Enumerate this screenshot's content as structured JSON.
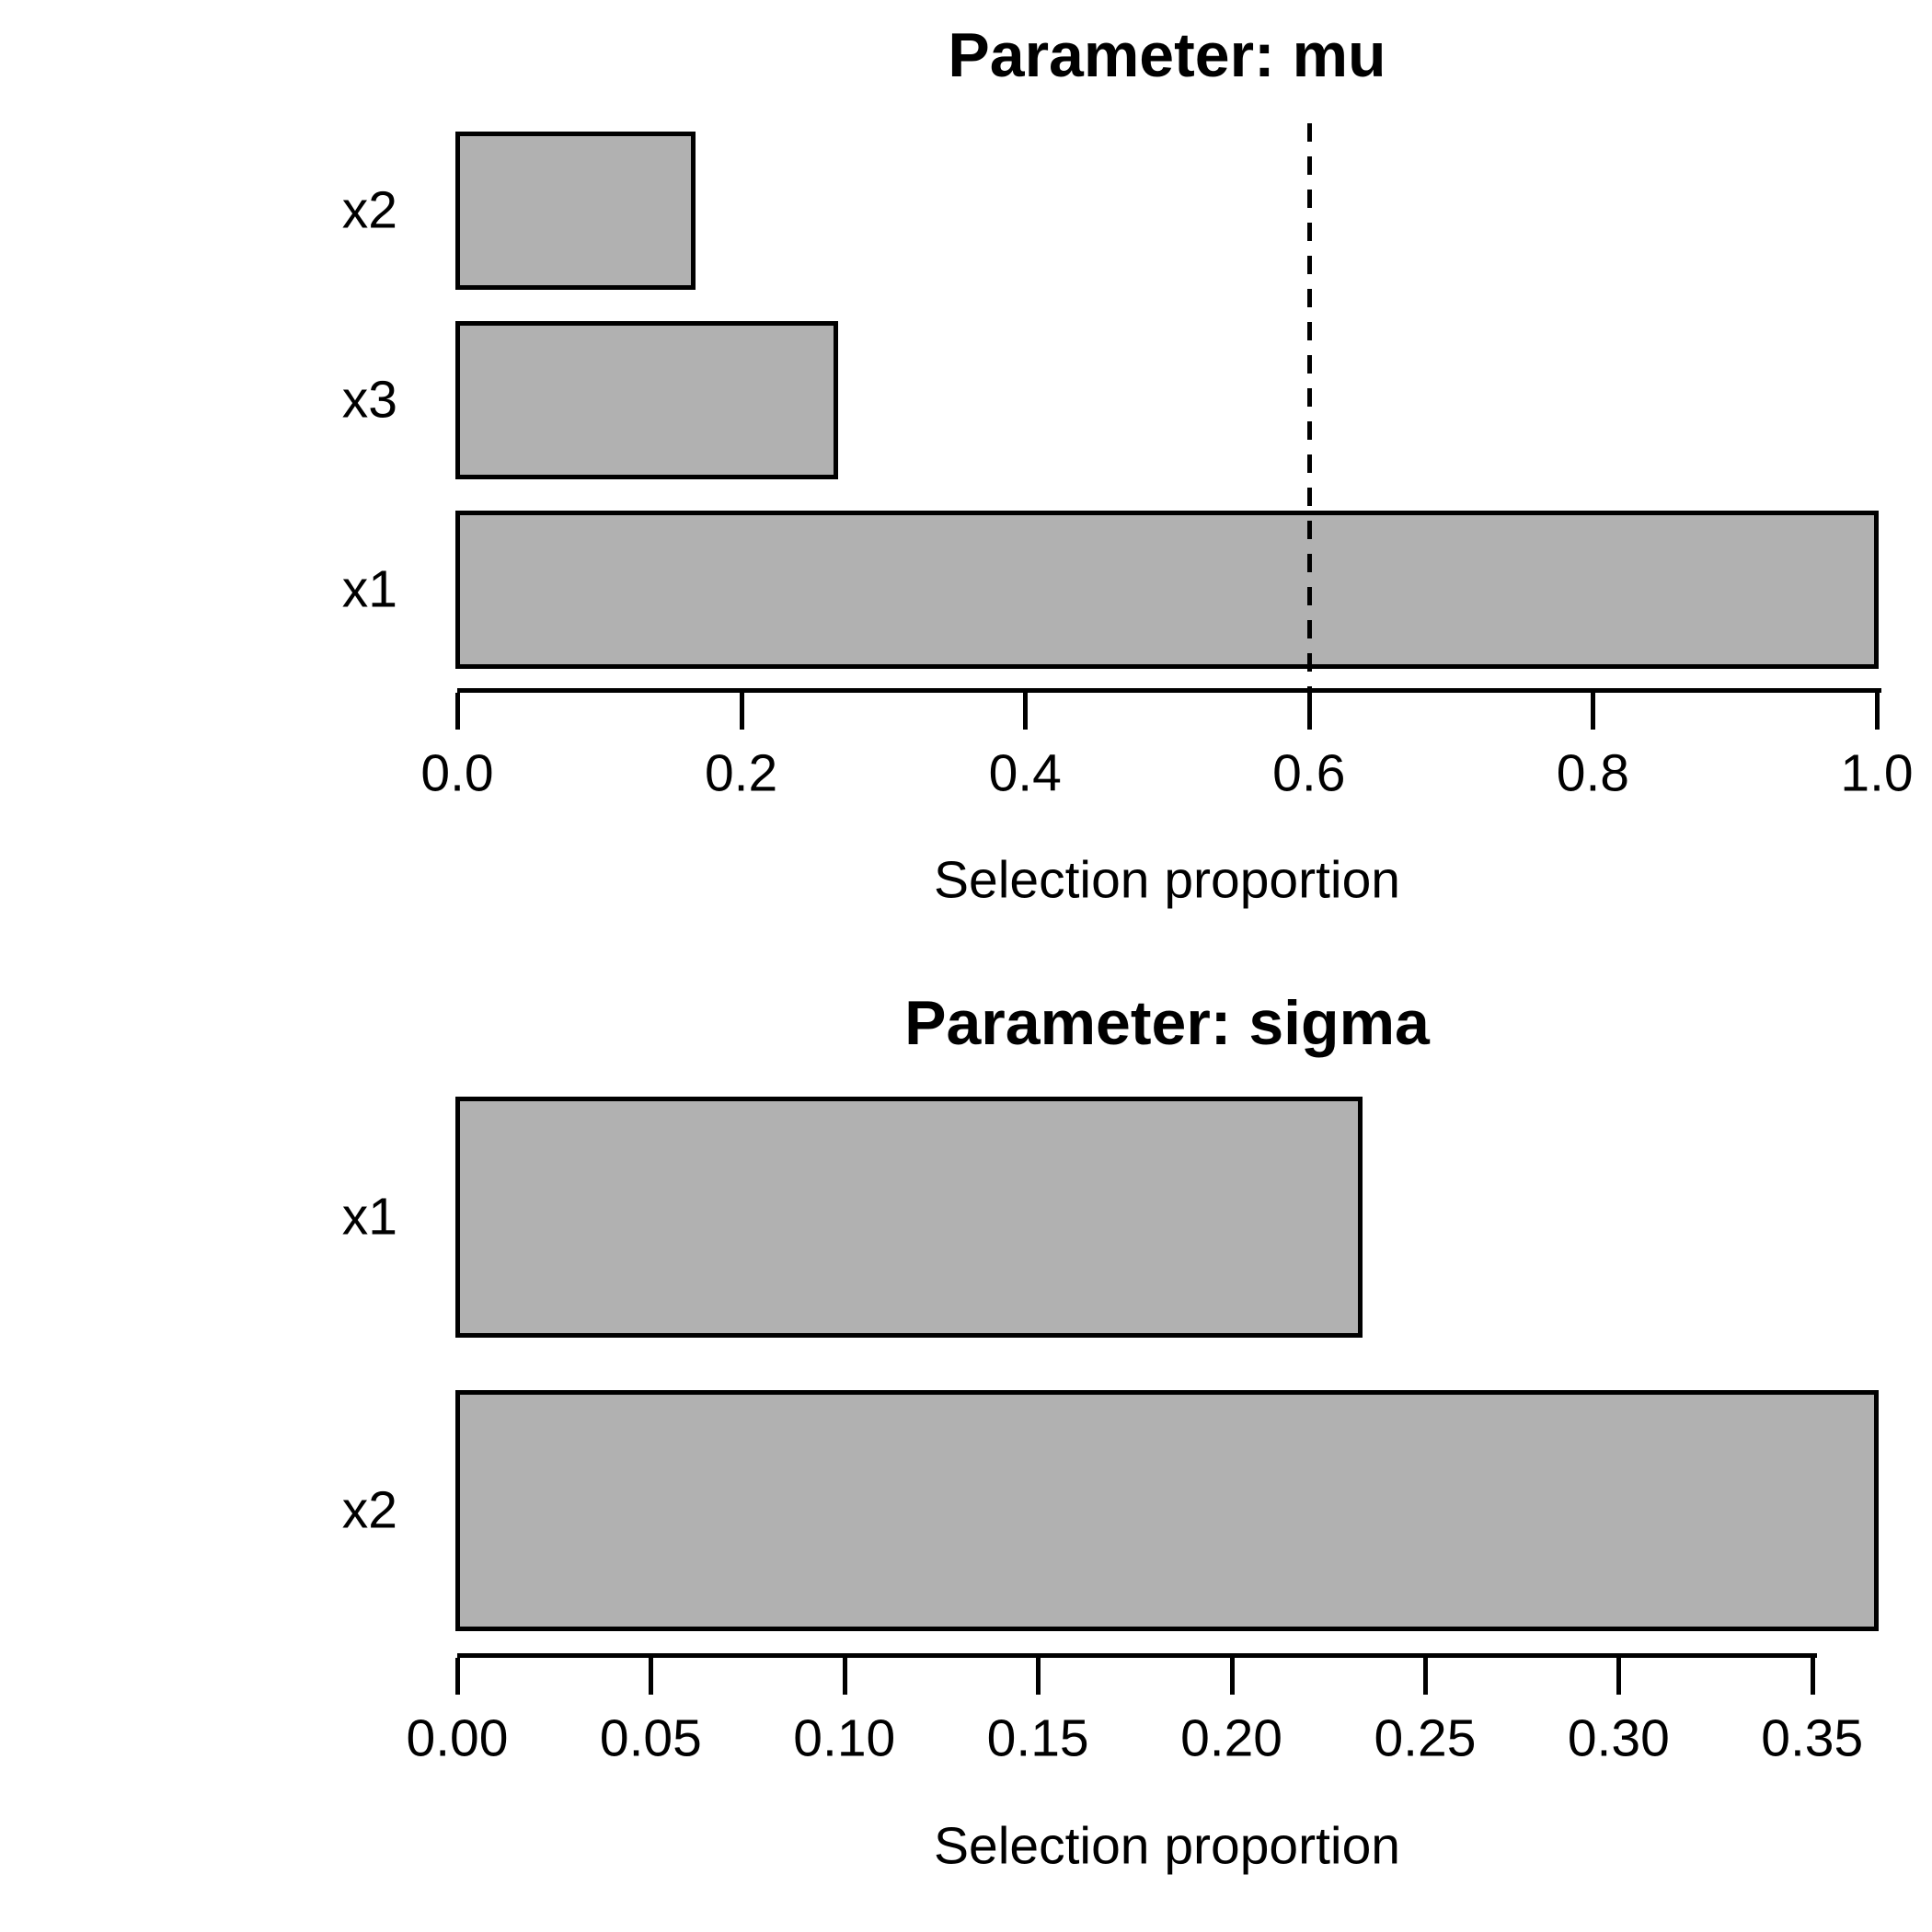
{
  "figure": {
    "background": "#ffffff",
    "text_color": "#000000",
    "axis_color": "#000000"
  },
  "chart_data": [
    {
      "type": "bar",
      "orientation": "horizontal",
      "title": "Parameter: mu",
      "categories": [
        "x2",
        "x3",
        "x1"
      ],
      "values": [
        0.1667,
        0.2667,
        1.0
      ],
      "xlabel": "Selection proportion",
      "ylabel": "",
      "xlim": [
        0,
        1.0
      ],
      "xticks": {
        "values": [
          0.0,
          0.2,
          0.4,
          0.6,
          0.8,
          1.0
        ],
        "labels": [
          "0.0",
          "0.2",
          "0.4",
          "0.6",
          "0.8",
          "1.0"
        ]
      },
      "reference_line": {
        "value": 0.6,
        "style": "dashed",
        "color": "#000000"
      },
      "bar_fill": "#b1b1b1",
      "bar_border": "#000000",
      "grid": false,
      "legend": null
    },
    {
      "type": "bar",
      "orientation": "horizontal",
      "title": "Parameter: sigma",
      "categories": [
        "x1",
        "x2"
      ],
      "values": [
        0.2333,
        0.3667
      ],
      "xlabel": "Selection proportion",
      "ylabel": "",
      "xlim": [
        0,
        0.3667
      ],
      "xticks": {
        "values": [
          0.0,
          0.05,
          0.1,
          0.15,
          0.2,
          0.25,
          0.3,
          0.35
        ],
        "labels": [
          "0.00",
          "0.05",
          "0.10",
          "0.15",
          "0.20",
          "0.25",
          "0.30",
          "0.35"
        ]
      },
      "reference_line": null,
      "bar_fill": "#b1b1b1",
      "bar_border": "#000000",
      "grid": false,
      "legend": null
    }
  ]
}
